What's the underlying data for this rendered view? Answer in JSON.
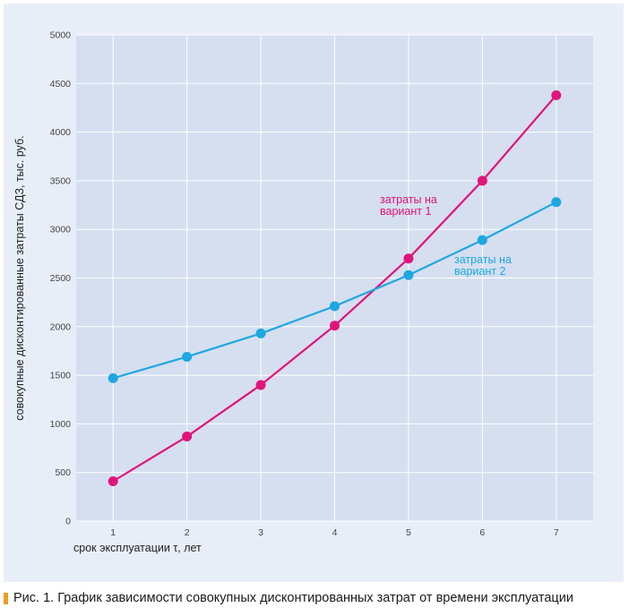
{
  "chart_data": {
    "type": "line",
    "title": "",
    "xlabel": "срок эксплуатации τ, лет",
    "ylabel": "совокупные дисконтированные затраты СДЗ, тыс. руб.",
    "x": [
      1,
      2,
      3,
      4,
      5,
      6,
      7
    ],
    "xlim": [
      0.5,
      7.5
    ],
    "ylim": [
      0,
      5000
    ],
    "xticks": [
      "1",
      "2",
      "3",
      "4",
      "5",
      "6",
      "7"
    ],
    "yticks": [
      "0",
      "500",
      "1000",
      "1500",
      "2000",
      "2500",
      "3000",
      "3500",
      "4000",
      "4500",
      "5000"
    ],
    "grid": true,
    "series": [
      {
        "name": "затраты на вариант 1",
        "label_lines": [
          "затраты на",
          "вариант 1"
        ],
        "color": "#e0147a",
        "values": [
          410,
          870,
          1400,
          2010,
          2700,
          3500,
          4380
        ]
      },
      {
        "name": "затраты на вариант 2",
        "label_lines": [
          "затраты на",
          "вариант 2"
        ],
        "color": "#1ea7e0",
        "values": [
          1470,
          1690,
          1930,
          2210,
          2530,
          2890,
          3280
        ]
      }
    ]
  },
  "caption": {
    "text": "Рис. 1. График зависимости совокупных дисконтированных затрат от времени эксплуатации",
    "marker_color": "#f39b1f"
  }
}
